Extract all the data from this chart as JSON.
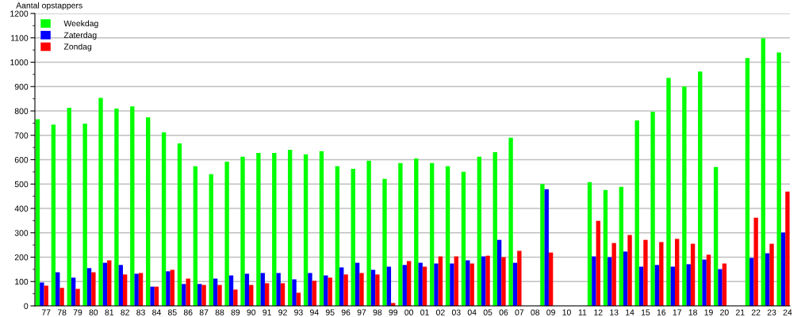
{
  "chart_data": {
    "type": "bar",
    "ylabel": "Aantal opstappers",
    "categories": [
      "77",
      "78",
      "79",
      "80",
      "81",
      "82",
      "83",
      "84",
      "85",
      "86",
      "87",
      "88",
      "89",
      "90",
      "91",
      "92",
      "93",
      "94",
      "95",
      "96",
      "97",
      "98",
      "99",
      "00",
      "01",
      "02",
      "03",
      "04",
      "05",
      "06",
      "07",
      "08",
      "09",
      "10",
      "11",
      "12",
      "13",
      "14",
      "15",
      "16",
      "17",
      "18",
      "19",
      "20",
      "21",
      "22",
      "23",
      "24"
    ],
    "series": [
      {
        "name": "Weekdag",
        "color": "#00ff00",
        "values": [
          766,
          744,
          813,
          748,
          854,
          810,
          819,
          774,
          712,
          667,
          573,
          541,
          592,
          612,
          628,
          628,
          641,
          622,
          635,
          573,
          563,
          596,
          521,
          586,
          605,
          586,
          573,
          550,
          612,
          631,
          690,
          null,
          500,
          null,
          null,
          508,
          476,
          489,
          761,
          797,
          936,
          901,
          962,
          570,
          null,
          1017,
          1098,
          1040
        ]
      },
      {
        "name": "Zaterdag",
        "color": "#0000ff",
        "values": [
          96,
          138,
          116,
          155,
          177,
          168,
          132,
          79,
          142,
          90,
          90,
          112,
          125,
          132,
          135,
          135,
          109,
          135,
          125,
          158,
          177,
          148,
          161,
          168,
          177,
          174,
          174,
          187,
          203,
          271,
          177,
          null,
          479,
          null,
          null,
          203,
          200,
          223,
          161,
          168,
          161,
          171,
          190,
          151,
          null,
          197,
          216,
          301
        ]
      },
      {
        "name": "Zondag",
        "color": "#ff0000",
        "values": [
          83,
          74,
          70,
          138,
          187,
          129,
          135,
          79,
          148,
          112,
          86,
          86,
          67,
          86,
          93,
          93,
          54,
          103,
          116,
          129,
          135,
          129,
          12,
          184,
          161,
          203,
          203,
          174,
          206,
          200,
          226,
          null,
          219,
          null,
          null,
          349,
          258,
          291,
          271,
          262,
          275,
          255,
          210,
          174,
          null,
          362,
          255,
          469
        ]
      }
    ],
    "ylim": [
      0,
      1200
    ],
    "yticks": [
      0,
      100,
      200,
      300,
      400,
      500,
      600,
      700,
      800,
      900,
      1000,
      1100,
      1200
    ],
    "grid": "y",
    "legend": "top left"
  }
}
